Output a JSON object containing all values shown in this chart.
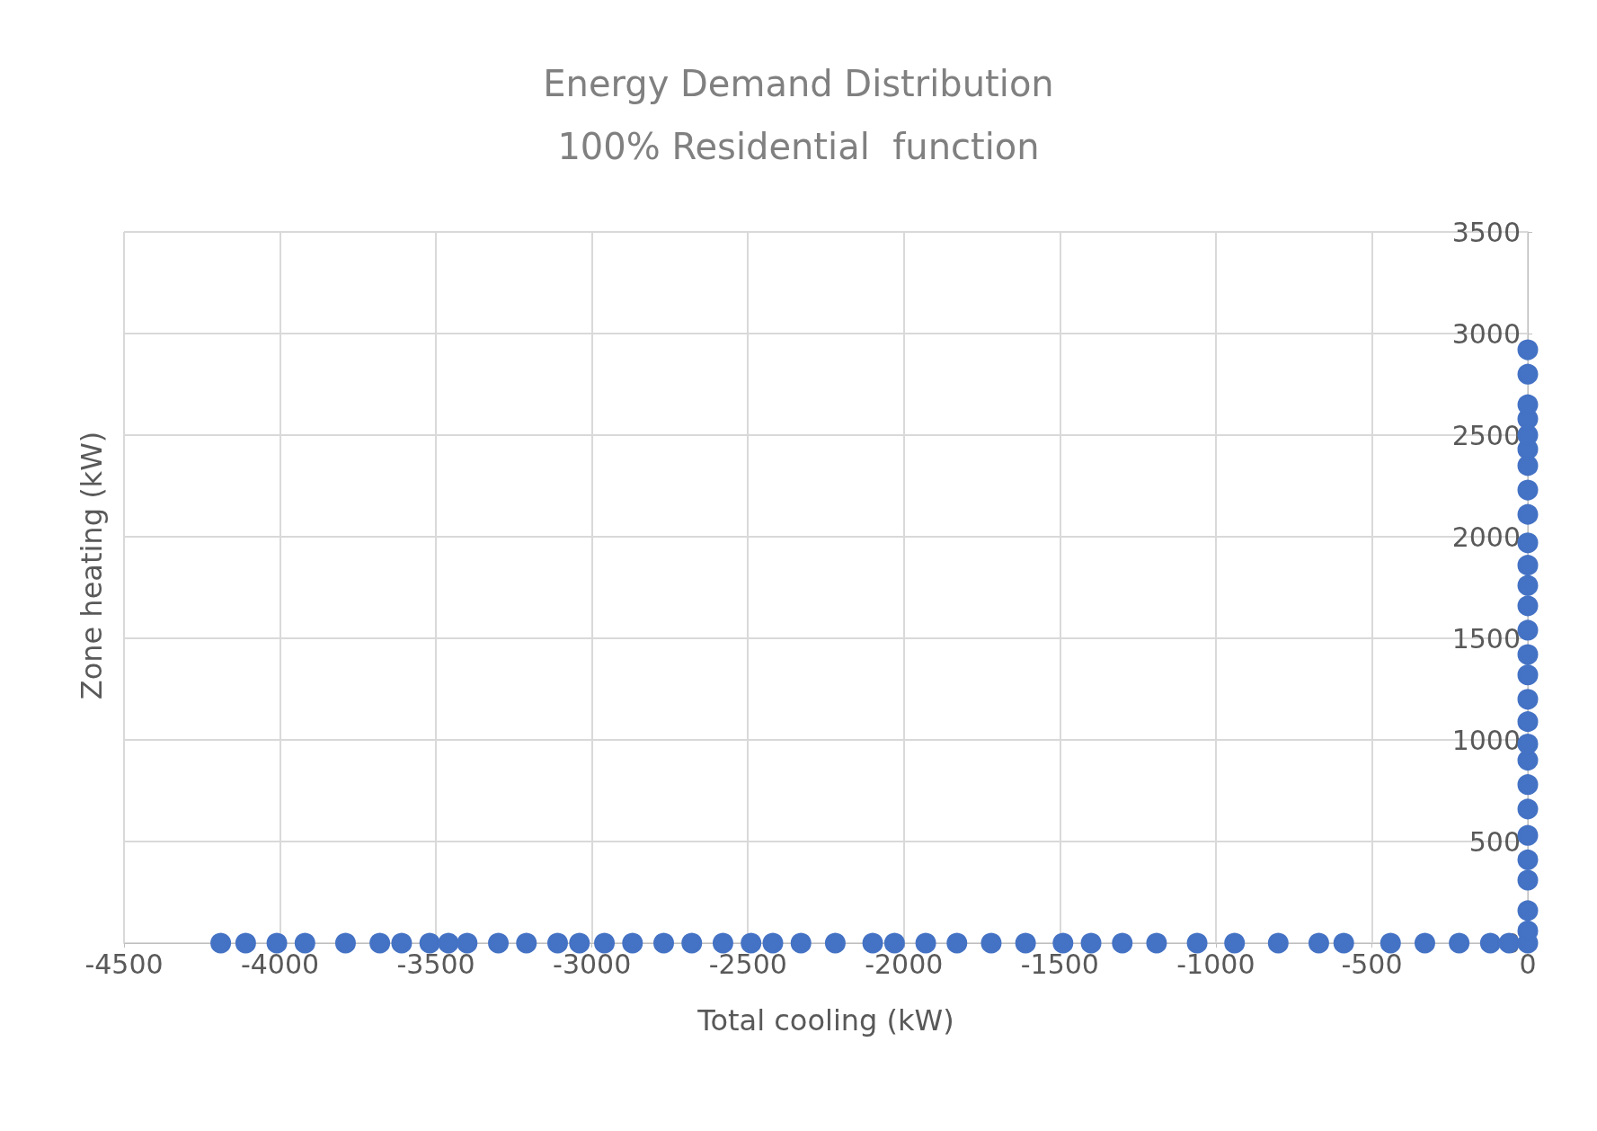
{
  "chart_data": {
    "type": "scatter",
    "title": "Energy Demand Distribution\n100% Residential  function",
    "xlabel": "Total cooling (kW)",
    "ylabel": "Zone heating (kW)",
    "xlim": [
      -4500,
      0
    ],
    "xticks": [
      -4500,
      -4000,
      -3500,
      -3000,
      -2500,
      -2000,
      -1500,
      -1000,
      -500,
      0
    ],
    "ylim": [
      0,
      3500
    ],
    "yticks": [
      0,
      500,
      1000,
      1500,
      2000,
      2500,
      3000,
      3500
    ],
    "grid": true,
    "marker": "circle",
    "series": [
      {
        "color": "#4472c4",
        "x": [
          -4190,
          -4110,
          -4010,
          -3920,
          -3790,
          -3680,
          -3610,
          -3520,
          -3460,
          -3400,
          -3300,
          -3210,
          -3110,
          -3040,
          -2960,
          -2870,
          -2770,
          -2680,
          -2580,
          -2490,
          -2420,
          -2330,
          -2220,
          -2100,
          -2030,
          -1930,
          -1830,
          -1720,
          -1610,
          -1490,
          -1400,
          -1300,
          -1190,
          -1060,
          -940,
          -800,
          -670,
          -590,
          -440,
          -330,
          -220,
          -120,
          -60,
          0,
          0,
          0,
          0,
          0,
          0,
          0,
          0,
          0,
          0,
          0,
          0,
          0,
          0,
          0,
          0,
          0,
          0,
          0,
          0,
          0,
          0,
          0,
          0,
          0,
          0,
          0,
          0
        ],
        "values": [
          0,
          0,
          0,
          0,
          0,
          0,
          0,
          0,
          0,
          0,
          0,
          0,
          0,
          0,
          0,
          0,
          0,
          0,
          0,
          0,
          0,
          0,
          0,
          0,
          0,
          0,
          0,
          0,
          0,
          0,
          0,
          0,
          0,
          0,
          0,
          0,
          0,
          0,
          0,
          0,
          0,
          0,
          0,
          0,
          60,
          160,
          310,
          410,
          530,
          660,
          780,
          900,
          980,
          1090,
          1200,
          1320,
          1420,
          1540,
          1660,
          1760,
          1860,
          1970,
          2110,
          2230,
          2350,
          2430,
          2500,
          2580,
          2650,
          2800,
          2920
        ]
      }
    ]
  }
}
